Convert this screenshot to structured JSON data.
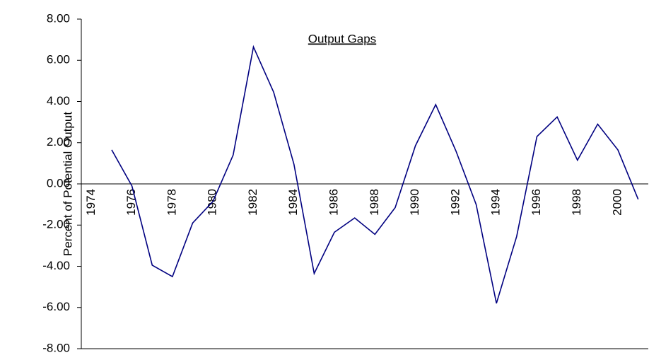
{
  "chart_data": {
    "type": "line",
    "title": "Output Gaps",
    "y_label": "Percent of Potential Output",
    "categories": [
      "1974",
      null,
      "1976",
      null,
      "1978",
      null,
      "1980",
      null,
      "1982",
      null,
      "1984",
      null,
      "1986",
      null,
      "1988",
      null,
      "1990",
      null,
      "1992",
      null,
      "1994",
      null,
      "1996",
      null,
      "1998",
      null,
      "2000",
      null
    ],
    "values": [
      null,
      1.65,
      -0.1,
      -3.95,
      -4.5,
      -1.9,
      -0.85,
      1.4,
      6.65,
      4.45,
      0.95,
      -4.35,
      -2.35,
      -1.65,
      -2.45,
      -1.15,
      1.85,
      3.85,
      1.6,
      -1.0,
      -5.8,
      -2.55,
      2.3,
      3.25,
      1.15,
      2.9,
      1.65,
      -0.75
    ],
    "color": "#000080",
    "ylim": [
      -8,
      8
    ],
    "yticks": [
      {
        "value": -8,
        "label": "-8.00"
      },
      {
        "value": -6,
        "label": "-6.00"
      },
      {
        "value": -4,
        "label": "-4.00"
      },
      {
        "value": -2,
        "label": "-2.00"
      },
      {
        "value": 0,
        "label": "0.00"
      },
      {
        "value": 2,
        "label": "2.00"
      },
      {
        "value": 4,
        "label": "4.00"
      },
      {
        "value": 6,
        "label": "6.00"
      },
      {
        "value": 8,
        "label": "8.00"
      }
    ],
    "grid": false
  }
}
